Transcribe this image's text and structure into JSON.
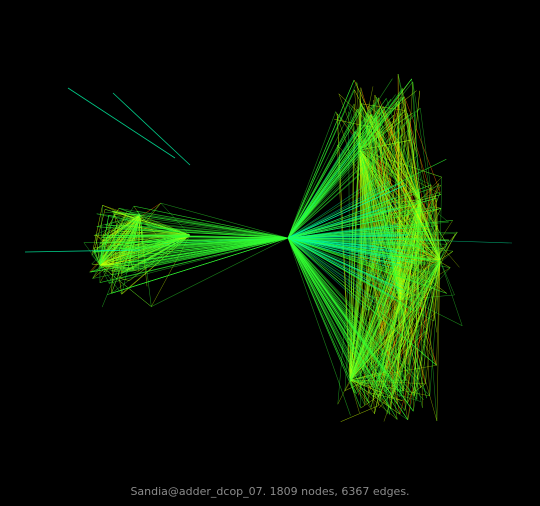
{
  "caption": "Sandia@adder_dcop_07. 1809 nodes, 6367 edges.",
  "graph": {
    "node_count": 1809,
    "edge_count": 6367,
    "background_color": "#000000",
    "edge_colors": {
      "short": "#00ffaa",
      "mid_green": "#33ff33",
      "mid_yellow": "#ccff00",
      "long": "#ff6600"
    }
  }
}
